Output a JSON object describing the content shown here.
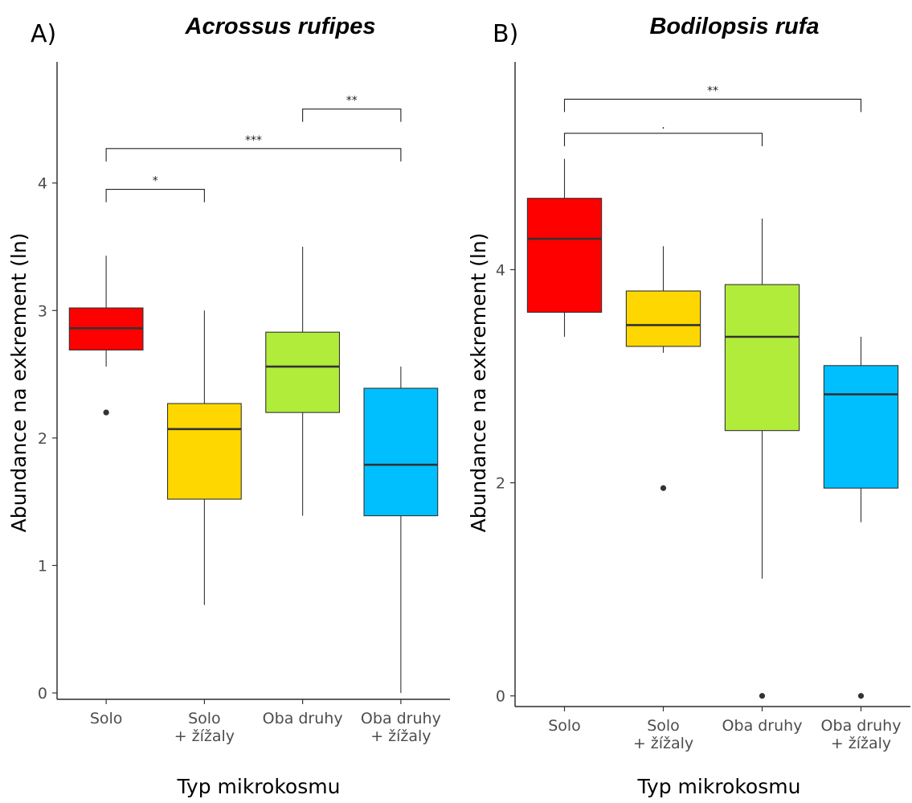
{
  "chart_data": [
    {
      "type": "boxplot",
      "panel_label": "A)",
      "title": "Acrossus rufipes",
      "xlabel": "Typ mikrokosmu",
      "ylabel": "Abundance na exkrement (ln)",
      "ylim": [
        -0.05,
        4.95
      ],
      "yticks": [
        0,
        1,
        2,
        3,
        4
      ],
      "categories": [
        [
          "Solo"
        ],
        [
          "Solo",
          "+ žížaly"
        ],
        [
          "Oba druhy"
        ],
        [
          "Oba druhy",
          "+ žížaly"
        ]
      ],
      "boxes": [
        {
          "color": "#ff0000",
          "whisker_low": 2.56,
          "q1": 2.69,
          "median": 2.86,
          "q3": 3.02,
          "whisker_high": 3.43,
          "outliers": [
            2.2
          ]
        },
        {
          "color": "#ffd700",
          "whisker_low": 0.69,
          "q1": 1.52,
          "median": 2.07,
          "q3": 2.27,
          "whisker_high": 3.0,
          "outliers": []
        },
        {
          "color": "#b2ec3b",
          "whisker_low": 1.39,
          "q1": 2.2,
          "median": 2.56,
          "q3": 2.83,
          "whisker_high": 3.5,
          "outliers": []
        },
        {
          "color": "#00bfff",
          "whisker_low": 0.0,
          "q1": 1.39,
          "median": 1.79,
          "q3": 2.39,
          "whisker_high": 2.56,
          "outliers": []
        }
      ],
      "significance": [
        {
          "from": 0,
          "to": 1,
          "y": 3.95,
          "label": "*"
        },
        {
          "from": 0,
          "to": 3,
          "y": 4.27,
          "label": "***"
        },
        {
          "from": 2,
          "to": 3,
          "y": 4.58,
          "label": "**"
        }
      ]
    },
    {
      "type": "boxplot",
      "panel_label": "B)",
      "title": "Bodilopsis rufa",
      "xlabel": "Typ mikrokosmu",
      "ylabel": "Abundance na exkrement (ln)",
      "ylim": [
        -0.1,
        5.95
      ],
      "yticks": [
        0,
        2,
        4
      ],
      "categories": [
        [
          "Solo"
        ],
        [
          "Solo",
          "+ žížaly"
        ],
        [
          "Oba druhy"
        ],
        [
          "Oba druhy",
          "+ žížaly"
        ]
      ],
      "boxes": [
        {
          "color": "#ff0000",
          "whisker_low": 3.37,
          "q1": 3.6,
          "median": 4.29,
          "q3": 4.67,
          "whisker_high": 5.04,
          "outliers": []
        },
        {
          "color": "#ffd700",
          "whisker_low": 3.22,
          "q1": 3.28,
          "median": 3.48,
          "q3": 3.8,
          "whisker_high": 4.22,
          "outliers": [
            1.95
          ]
        },
        {
          "color": "#b2ec3b",
          "whisker_low": 1.1,
          "q1": 2.49,
          "median": 3.37,
          "q3": 3.86,
          "whisker_high": 4.48,
          "outliers": [
            0
          ]
        },
        {
          "color": "#00bfff",
          "whisker_low": 1.63,
          "q1": 1.95,
          "median": 2.83,
          "q3": 3.1,
          "whisker_high": 3.37,
          "outliers": [
            0
          ]
        }
      ],
      "significance": [
        {
          "from": 0,
          "to": 2,
          "y": 5.28,
          "label": "."
        },
        {
          "from": 0,
          "to": 3,
          "y": 5.6,
          "label": "**"
        }
      ]
    }
  ]
}
